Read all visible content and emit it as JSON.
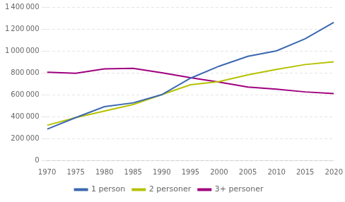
{
  "chart_data": {
    "type": "line",
    "x": [
      1970,
      1975,
      1980,
      1985,
      1990,
      1995,
      2000,
      2005,
      2010,
      2015,
      2020
    ],
    "series": [
      {
        "name": "1 person",
        "color": "#3B68B0",
        "values": [
          285000,
          390000,
          490000,
          525000,
          600000,
          750000,
          860000,
          950000,
          1000000,
          1110000,
          1260000
        ]
      },
      {
        "name": "2 personer",
        "color": "#B5C200",
        "values": [
          320000,
          390000,
          450000,
          510000,
          600000,
          690000,
          720000,
          780000,
          830000,
          875000,
          900000
        ]
      },
      {
        "name": "3+ personer",
        "color": "#A0007F",
        "values": [
          805000,
          795000,
          835000,
          840000,
          800000,
          755000,
          715000,
          670000,
          650000,
          625000,
          610000
        ]
      }
    ],
    "xlim": [
      1970,
      2020
    ],
    "xticks": [
      1970,
      1975,
      1980,
      1985,
      1990,
      1995,
      2000,
      2005,
      2010,
      2015,
      2020
    ],
    "ylim": [
      0,
      1400000
    ],
    "yticks": [
      0,
      {
        "value": 200000,
        "label": "200 000"
      },
      {
        "value": 400000,
        "label": "400 000"
      },
      {
        "value": 600000,
        "label": "600 000"
      },
      {
        "value": 800000,
        "label": "800 000"
      },
      {
        "value": 1000000,
        "label": "1 000 000"
      },
      {
        "value": 1200000,
        "label": "1 200 000"
      },
      {
        "value": 1400000,
        "label": "1 400 000"
      }
    ],
    "grid": "y",
    "legend": "bottom"
  }
}
